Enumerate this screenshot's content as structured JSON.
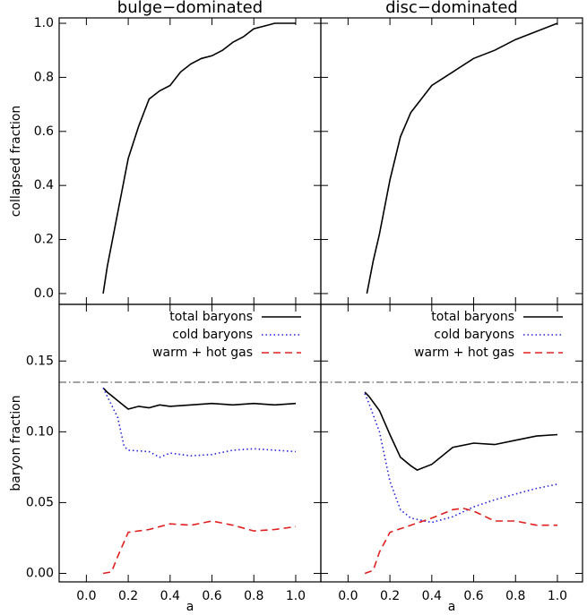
{
  "chart_data": [
    {
      "type": "line",
      "title": "bulge−dominated",
      "ylabel": "collapsed fraction",
      "xlim": [
        -0.13,
        1.12
      ],
      "ylim": [
        -0.04,
        1.02
      ],
      "xticks": [
        0,
        0.2,
        0.4,
        0.6,
        0.8,
        1
      ],
      "xtick_labels": false,
      "yticks": [
        {
          "value": 0,
          "label": "0.0"
        },
        0.2,
        0.4,
        0.6,
        0.8,
        {
          "value": 1,
          "label": "1.0"
        }
      ],
      "ytick_labels": true,
      "series": [
        {
          "color": "#000000",
          "dash": "solid",
          "x": [
            0.08,
            0.1,
            0.15,
            0.2,
            0.25,
            0.3,
            0.35,
            0.4,
            0.45,
            0.5,
            0.55,
            0.6,
            0.65,
            0.7,
            0.75,
            0.8,
            0.85,
            0.9,
            1.0
          ],
          "values": [
            0,
            0.1,
            0.3,
            0.5,
            0.62,
            0.72,
            0.75,
            0.77,
            0.82,
            0.85,
            0.87,
            0.88,
            0.9,
            0.93,
            0.95,
            0.98,
            0.99,
            1.0,
            1.0
          ]
        }
      ]
    },
    {
      "type": "line",
      "title": "disc−dominated",
      "xlim": [
        -0.13,
        1.12
      ],
      "ylim": [
        -0.04,
        1.02
      ],
      "xticks": [
        0,
        0.2,
        0.4,
        0.6,
        0.8,
        1
      ],
      "xtick_labels": false,
      "yticks": [
        0,
        0.2,
        0.4,
        0.6,
        0.8,
        1
      ],
      "ytick_labels": false,
      "series": [
        {
          "color": "#000000",
          "dash": "solid",
          "x": [
            0.09,
            0.12,
            0.15,
            0.2,
            0.25,
            0.3,
            0.35,
            0.4,
            0.5,
            0.6,
            0.7,
            0.8,
            0.9,
            1.0
          ],
          "values": [
            0,
            0.12,
            0.22,
            0.42,
            0.58,
            0.67,
            0.72,
            0.77,
            0.82,
            0.87,
            0.9,
            0.94,
            0.97,
            1.0
          ]
        }
      ]
    },
    {
      "type": "line",
      "ylabel": "baryon fraction",
      "xlabel": "a",
      "xlim": [
        -0.13,
        1.12
      ],
      "ylim": [
        -0.006,
        0.19
      ],
      "xticks": [
        {
          "value": 0,
          "label": "0.0"
        },
        0.2,
        0.4,
        0.6,
        0.8,
        {
          "value": 1,
          "label": "1.0"
        }
      ],
      "xtick_labels": true,
      "yticks": [
        {
          "value": 0,
          "label": "0.00"
        },
        0.05,
        {
          "value": 0.1,
          "label": "0.10"
        },
        0.15
      ],
      "ytick_labels": true,
      "reference_line": 0.135,
      "legend": "upper right",
      "series": [
        {
          "name": "total baryons",
          "color": "#000000",
          "dash": "solid",
          "x": [
            0.08,
            0.1,
            0.15,
            0.2,
            0.25,
            0.3,
            0.35,
            0.4,
            0.5,
            0.6,
            0.7,
            0.8,
            0.9,
            1.0
          ],
          "values": [
            0.131,
            0.128,
            0.122,
            0.116,
            0.118,
            0.117,
            0.119,
            0.118,
            0.119,
            0.12,
            0.119,
            0.12,
            0.119,
            0.12
          ]
        },
        {
          "name": "cold baryons",
          "color": "#2020e0",
          "dash": "dotted",
          "x": [
            0.08,
            0.1,
            0.15,
            0.18,
            0.2,
            0.3,
            0.35,
            0.4,
            0.5,
            0.6,
            0.7,
            0.8,
            0.9,
            1.0
          ],
          "values": [
            0.131,
            0.125,
            0.11,
            0.09,
            0.087,
            0.086,
            0.082,
            0.085,
            0.083,
            0.084,
            0.087,
            0.088,
            0.087,
            0.086
          ]
        },
        {
          "name": "warm + hot gas",
          "color": "#e02020",
          "dash": "dashed",
          "x": [
            0.08,
            0.12,
            0.15,
            0.2,
            0.3,
            0.4,
            0.5,
            0.6,
            0.7,
            0.8,
            0.9,
            1.0
          ],
          "values": [
            0,
            0.001,
            0.012,
            0.029,
            0.031,
            0.035,
            0.034,
            0.037,
            0.034,
            0.03,
            0.031,
            0.033
          ]
        }
      ]
    },
    {
      "type": "line",
      "xlabel": "a",
      "xlim": [
        -0.13,
        1.12
      ],
      "ylim": [
        -0.006,
        0.19
      ],
      "xticks": [
        {
          "value": 0,
          "label": "0.0"
        },
        0.2,
        0.4,
        0.6,
        0.8,
        {
          "value": 1,
          "label": "1.0"
        }
      ],
      "xtick_labels": true,
      "yticks": [
        0,
        0.05,
        0.1,
        0.15
      ],
      "ytick_labels": false,
      "reference_line": 0.135,
      "legend": "upper right",
      "series": [
        {
          "name": "total baryons",
          "color": "#000000",
          "dash": "solid",
          "x": [
            0.08,
            0.1,
            0.15,
            0.2,
            0.25,
            0.3,
            0.33,
            0.4,
            0.45,
            0.5,
            0.6,
            0.7,
            0.8,
            0.9,
            1.0
          ],
          "values": [
            0.128,
            0.125,
            0.115,
            0.098,
            0.082,
            0.076,
            0.073,
            0.077,
            0.083,
            0.089,
            0.092,
            0.091,
            0.094,
            0.097,
            0.098
          ]
        },
        {
          "name": "cold baryons",
          "color": "#2020e0",
          "dash": "dotted",
          "x": [
            0.08,
            0.1,
            0.15,
            0.2,
            0.25,
            0.3,
            0.4,
            0.5,
            0.6,
            0.7,
            0.8,
            0.9,
            1.0
          ],
          "values": [
            0.127,
            0.12,
            0.1,
            0.065,
            0.045,
            0.039,
            0.036,
            0.04,
            0.047,
            0.052,
            0.056,
            0.06,
            0.063
          ]
        },
        {
          "name": "warm + hot gas",
          "color": "#e02020",
          "dash": "dashed",
          "x": [
            0.08,
            0.12,
            0.15,
            0.2,
            0.3,
            0.4,
            0.5,
            0.55,
            0.6,
            0.7,
            0.8,
            0.9,
            1.0
          ],
          "values": [
            0,
            0.002,
            0.015,
            0.029,
            0.034,
            0.039,
            0.045,
            0.046,
            0.044,
            0.037,
            0.037,
            0.034,
            0.034
          ]
        }
      ]
    }
  ]
}
